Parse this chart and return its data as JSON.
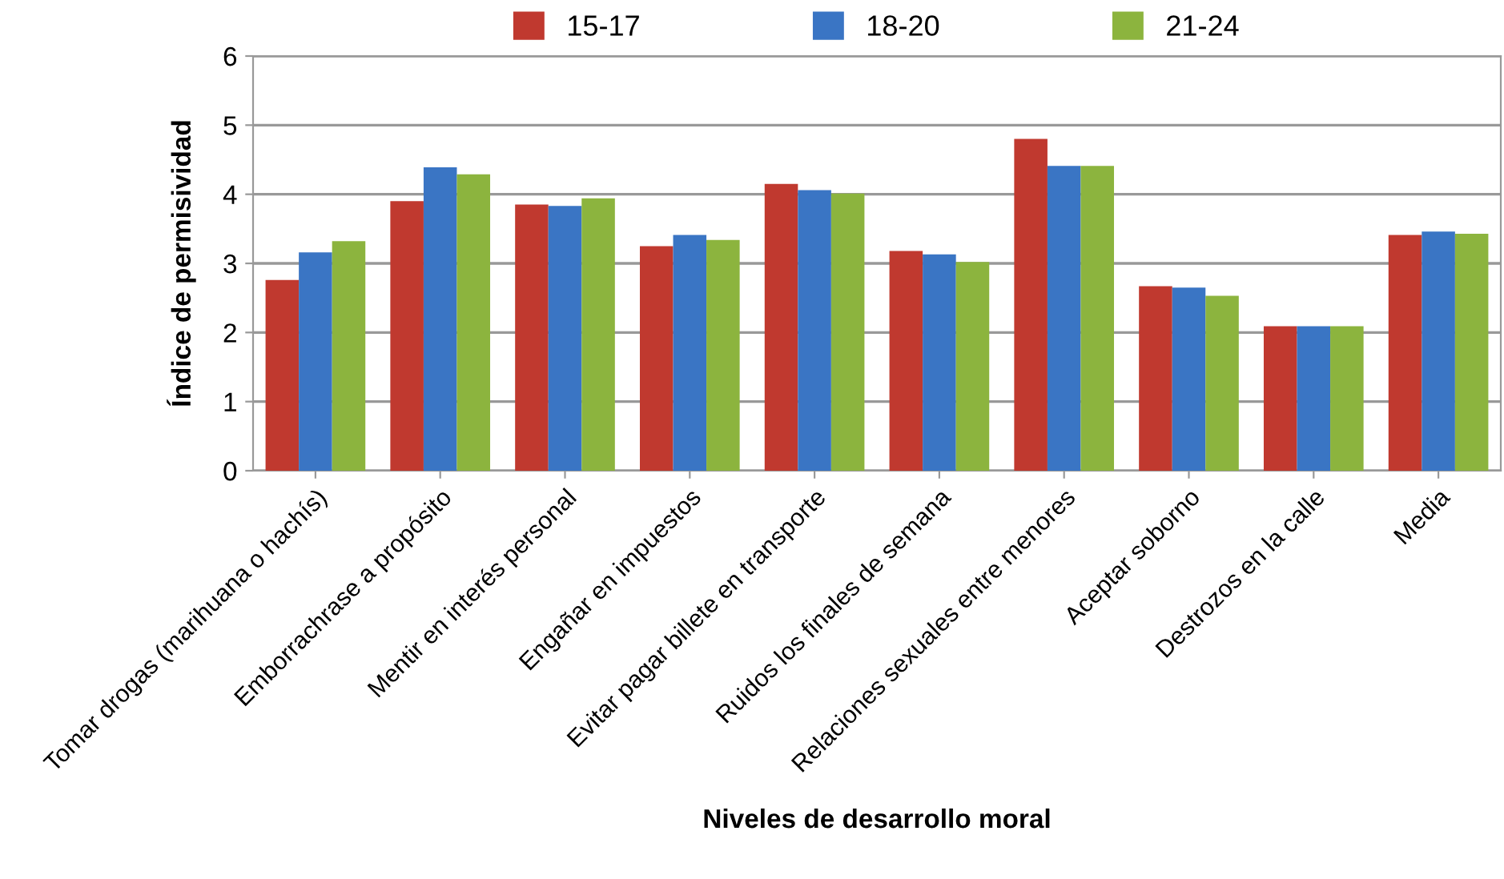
{
  "chart_data": {
    "type": "bar",
    "xlabel": "Niveles de desarrollo moral",
    "ylabel": "Índice de permisividad",
    "categories": [
      "Tomar drogas (marihuana o hachís)",
      "Emborrachrase a propósito",
      "Mentir en interés personal",
      "Engañar en impuestos",
      "Evitar pagar billete en transporte",
      "Ruidos los finales de semana",
      "Relaciones sexuales entre menores",
      "Aceptar soborno",
      "Destrozos en la calle",
      "Media"
    ],
    "series": [
      {
        "name": "15-17",
        "color": "#c0392f",
        "values": [
          2.76,
          3.9,
          3.85,
          3.25,
          4.15,
          3.18,
          4.8,
          2.67,
          2.09,
          3.41
        ]
      },
      {
        "name": "18-20",
        "color": "#3a75c4",
        "values": [
          3.16,
          4.39,
          3.83,
          3.41,
          4.06,
          3.13,
          4.41,
          2.65,
          2.09,
          3.46
        ]
      },
      {
        "name": "21-24",
        "color": "#8cb43e",
        "values": [
          3.32,
          4.29,
          3.94,
          3.34,
          4.01,
          3.02,
          4.41,
          2.53,
          2.09,
          3.43
        ]
      }
    ],
    "ylim": [
      0,
      6
    ],
    "yticks": [
      0,
      1,
      2,
      3,
      4,
      5,
      6
    ],
    "grid": "y",
    "legend": "top"
  }
}
